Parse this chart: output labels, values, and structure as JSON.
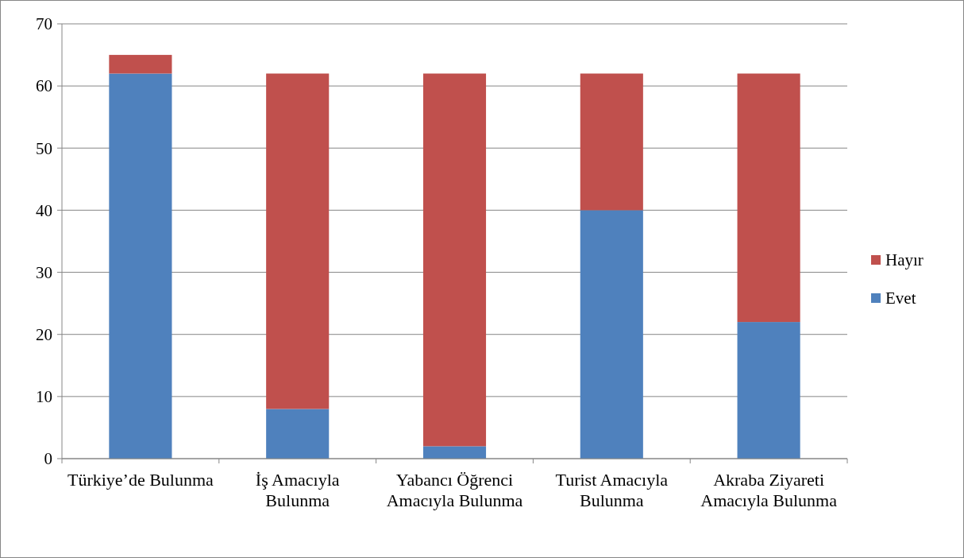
{
  "chart_data": {
    "type": "bar",
    "stacked": true,
    "categories": [
      "Türkiye’de Bulunma",
      "İş Amacıyla Bulunma",
      "Yabancı Öğrenci Amacıyla Bulunma",
      "Turist Amacıyla Bulunma",
      "Akraba Ziyareti Amacıyla Bulunma"
    ],
    "series": [
      {
        "name": "Evet",
        "color": "#4f81bd",
        "values": [
          62,
          8,
          2,
          40,
          22
        ]
      },
      {
        "name": "Hayır",
        "color": "#c0504d",
        "values": [
          3,
          54,
          60,
          22,
          40
        ]
      }
    ],
    "ylim": [
      0,
      70
    ],
    "yticks": [
      0,
      10,
      20,
      30,
      40,
      50,
      60,
      70
    ],
    "grid": "y",
    "legend": "right"
  }
}
